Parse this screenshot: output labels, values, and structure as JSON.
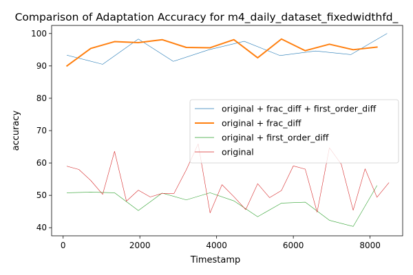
{
  "chart_data": {
    "type": "line",
    "title": "Comparison of Adaptation Accuracy for m4_daily_dataset_fixedwidthfd_",
    "xlabel": "Timestamp",
    "ylabel": "accuracy",
    "xlim": [
      -300,
      8850
    ],
    "ylim": [
      37.5,
      102.5
    ],
    "xticks": [
      0,
      2000,
      4000,
      6000,
      8000
    ],
    "yticks": [
      40,
      50,
      60,
      70,
      80,
      90,
      100
    ],
    "grid": false,
    "legend_position": "center-right",
    "series": [
      {
        "name": "original + frac_diff + first_order_diff",
        "color": "#1f77b4",
        "width": 0.6,
        "x": [
          100,
          1030,
          1960,
          2870,
          3800,
          4720,
          5650,
          6580,
          7500,
          8440
        ],
        "y": [
          93.3,
          90.5,
          98.3,
          91.4,
          95.0,
          97.6,
          93.2,
          94.6,
          93.5,
          100.0
        ]
      },
      {
        "name": "original + frac_diff",
        "color": "#ff7f0e",
        "width": 2,
        "x": [
          100,
          720,
          1340,
          1960,
          2580,
          3210,
          3830,
          4450,
          5070,
          5690,
          6310,
          6940,
          7560,
          8180
        ],
        "y": [
          90.0,
          95.4,
          97.5,
          97.2,
          98.1,
          95.7,
          95.6,
          98.1,
          92.5,
          98.3,
          94.7,
          96.7,
          95.0,
          95.8
        ]
      },
      {
        "name": "original + first_order_diff",
        "color": "#2ca02c",
        "width": 0.6,
        "x": [
          100,
          720,
          1340,
          1960,
          2580,
          3210,
          3830,
          4450,
          5070,
          5690,
          6310,
          6940,
          7560,
          8180
        ],
        "y": [
          50.8,
          51.0,
          50.8,
          45.3,
          50.7,
          48.6,
          50.8,
          48.3,
          43.4,
          47.6,
          47.9,
          42.3,
          40.4,
          53.0
        ]
      },
      {
        "name": "original",
        "color": "#d62728",
        "width": 0.6,
        "x": [
          100,
          410,
          720,
          1030,
          1340,
          1650,
          1960,
          2270,
          2580,
          2890,
          3210,
          3520,
          3830,
          4140,
          4450,
          4760,
          5070,
          5380,
          5690,
          6000,
          6310,
          6620,
          6940,
          7250,
          7560,
          7870,
          8180,
          8490
        ],
        "y": [
          59.0,
          58.0,
          54.6,
          50.3,
          63.6,
          48.2,
          51.6,
          49.5,
          50.6,
          50.6,
          57.9,
          65.9,
          44.6,
          53.3,
          49.6,
          45.6,
          53.6,
          49.3,
          51.5,
          59.1,
          58.1,
          44.8,
          64.7,
          59.6,
          45.4,
          58.2,
          49.4,
          53.9
        ]
      }
    ]
  }
}
